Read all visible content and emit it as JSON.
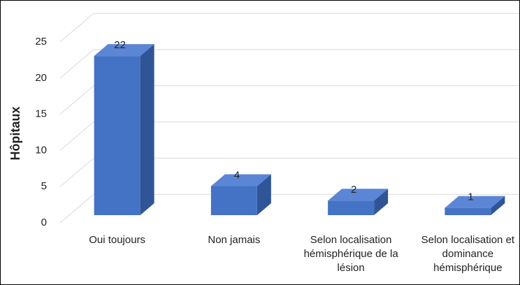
{
  "chart_data": {
    "type": "bar3d",
    "y_label": "Hôpitaux",
    "categories": [
      "Oui toujours",
      "Non jamais",
      "Selon localisation hémisphérique de la lésion",
      "Selon localisation et dominance hémisphérique"
    ],
    "values": [
      22,
      4,
      2,
      1
    ],
    "color": "#4472c4",
    "ylim": [
      0,
      25
    ],
    "yticks": [
      0,
      5,
      10,
      15,
      20,
      25
    ],
    "grid": true
  }
}
